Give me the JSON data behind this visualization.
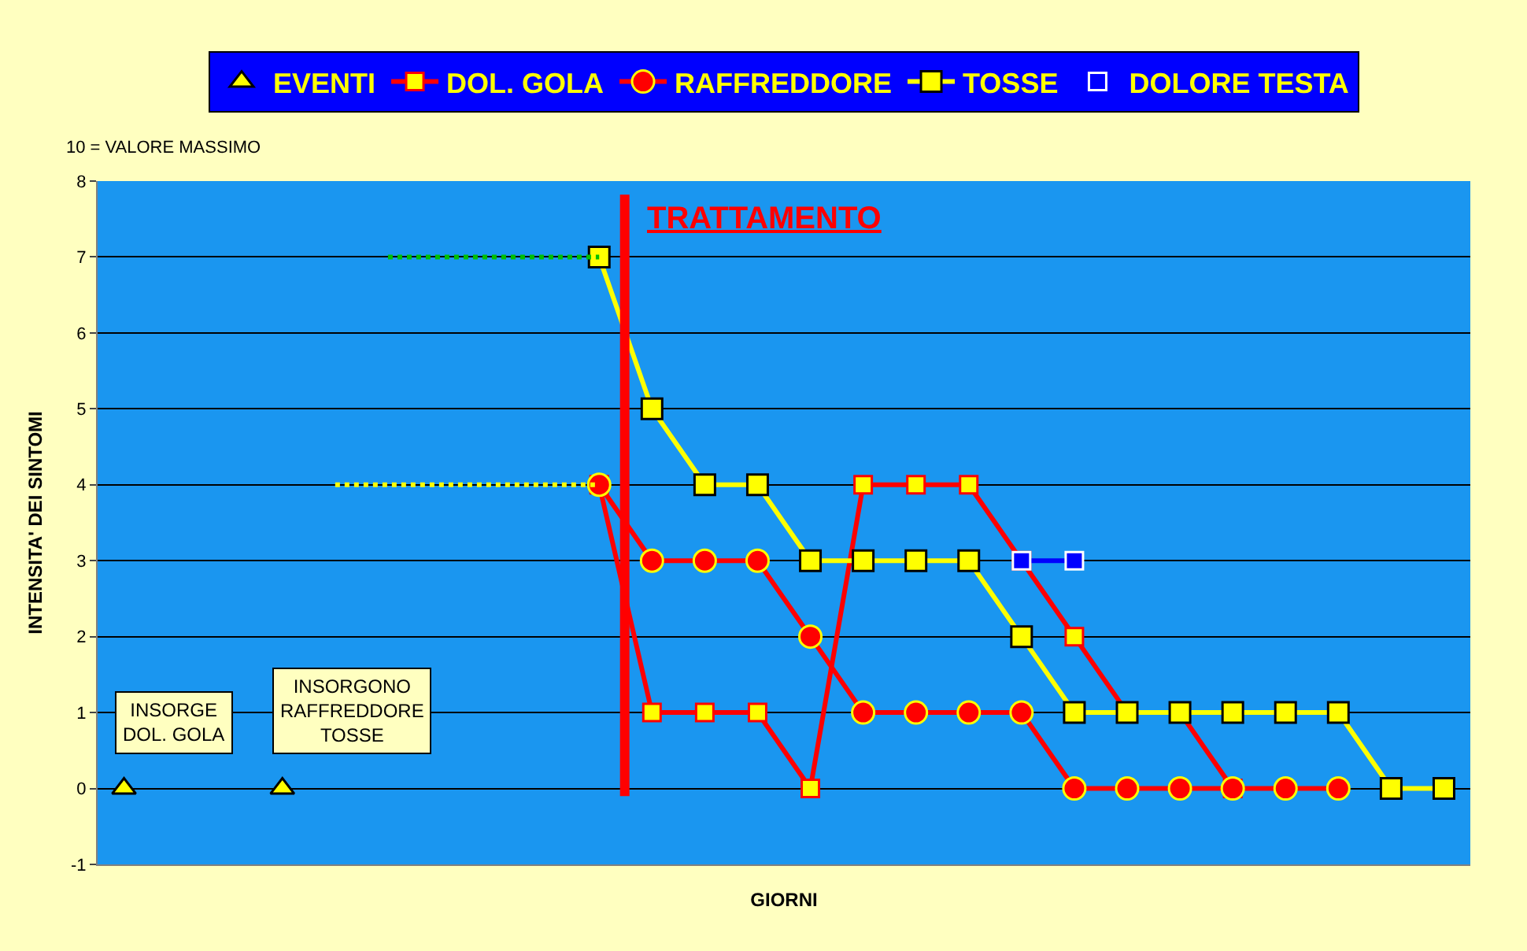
{
  "chart_data": {
    "type": "line",
    "xlabel": "GIORNI",
    "ylabel": "INTENSITA' DEI SINTOMI",
    "categories": [
      null,
      null,
      null,
      null,
      null,
      null,
      null,
      null,
      null,
      null,
      null,
      null,
      null,
      null,
      null,
      null,
      null,
      null,
      null,
      null,
      null,
      null,
      null,
      null,
      null,
      null
    ],
    "ylim": [
      -1,
      8
    ],
    "yticks": [
      -1,
      0,
      1,
      2,
      3,
      4,
      5,
      6,
      7,
      8
    ],
    "grid": "y",
    "legend": "top",
    "series": [
      {
        "name": "EVENTI",
        "type": "scatter",
        "marker": "triangle",
        "color": "#ffff00",
        "values": [
          0,
          null,
          null,
          0,
          null,
          null,
          null,
          null,
          null,
          null,
          null,
          null,
          null,
          null,
          null,
          null,
          null,
          null,
          null,
          null,
          null,
          null,
          null,
          null,
          null,
          null
        ]
      },
      {
        "name": "DOL. GOLA",
        "marker": "square",
        "color": "#ff0000",
        "values": [
          null,
          null,
          null,
          null,
          null,
          null,
          null,
          null,
          null,
          4,
          1,
          1,
          1,
          0,
          4,
          4,
          4,
          3,
          2,
          1,
          1,
          0,
          null,
          null,
          null,
          null
        ]
      },
      {
        "name": "RAFFREDDORE",
        "marker": "circle",
        "color": "#ff0000",
        "values": [
          null,
          null,
          null,
          null,
          null,
          null,
          null,
          null,
          null,
          4,
          3,
          3,
          3,
          2,
          1,
          1,
          1,
          1,
          0,
          0,
          0,
          0,
          0,
          0,
          null,
          null
        ]
      },
      {
        "name": "TOSSE",
        "marker": "square",
        "color": "#ffff00",
        "values": [
          null,
          null,
          null,
          null,
          null,
          null,
          null,
          null,
          null,
          7,
          5,
          4,
          4,
          3,
          3,
          3,
          3,
          2,
          1,
          1,
          1,
          1,
          1,
          1,
          0,
          0
        ]
      },
      {
        "name": "DOLORE TESTA",
        "marker": "square",
        "color": "#0000ff",
        "values": [
          null,
          null,
          null,
          null,
          null,
          null,
          null,
          null,
          null,
          null,
          null,
          null,
          null,
          null,
          null,
          null,
          null,
          3,
          3,
          null,
          null,
          null,
          null,
          null,
          null,
          null
        ]
      },
      {
        "line_style": "dotted",
        "marker": "none",
        "color": "#00c000",
        "values": [
          null,
          null,
          null,
          null,
          null,
          7,
          7,
          7,
          7,
          7,
          null,
          null,
          null,
          null,
          null,
          null,
          null,
          null,
          null,
          null,
          null,
          null,
          null,
          null,
          null,
          null
        ]
      },
      {
        "line_style": "dotted",
        "marker": "none",
        "color": "#ffff00",
        "values": [
          null,
          null,
          null,
          null,
          4,
          4,
          4,
          4,
          4,
          4,
          null,
          null,
          null,
          null,
          null,
          null,
          null,
          null,
          null,
          null,
          null,
          null,
          null,
          null,
          null,
          null
        ]
      }
    ],
    "ref_lines": [
      {
        "axis": "x",
        "label": "TRATTAMENTO",
        "color": "#ff0000"
      }
    ],
    "annotations": [
      "10 = VALORE MASSIMO",
      "INSORGE\nDOL. GOLA",
      "INSORGONO\nRAFFREDDORE\nTOSSE"
    ]
  }
}
